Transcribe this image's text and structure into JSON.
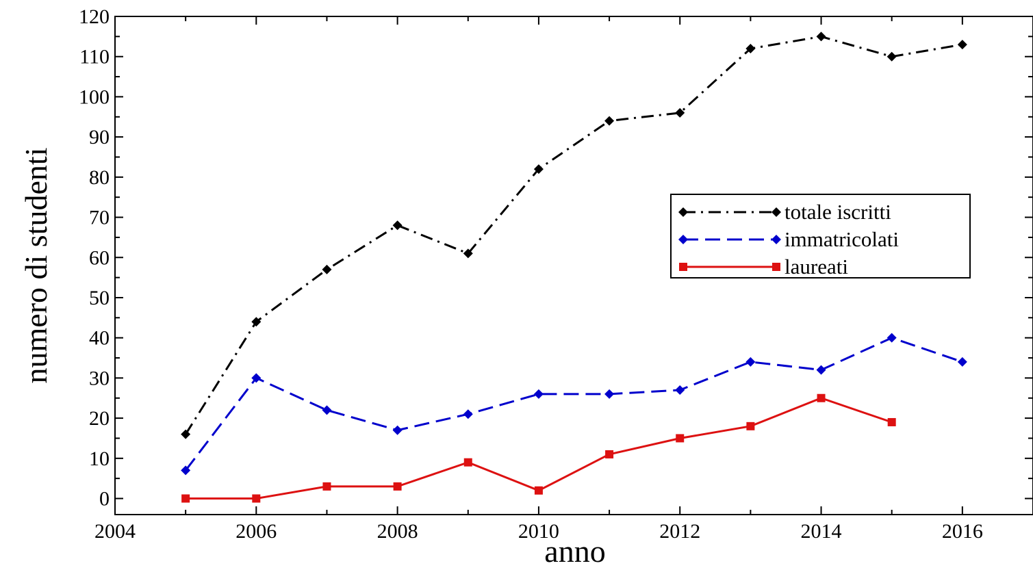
{
  "chart_data": {
    "type": "line",
    "title": "",
    "xlabel": "anno",
    "ylabel": "numero di studenti",
    "xlim": [
      2004,
      2017
    ],
    "ylim": [
      -4,
      120
    ],
    "x_ticks": [
      2004,
      2006,
      2008,
      2010,
      2012,
      2014,
      2016
    ],
    "y_ticks": [
      0,
      10,
      20,
      30,
      40,
      50,
      60,
      70,
      80,
      90,
      100,
      110,
      120
    ],
    "grid": false,
    "legend_position": "right",
    "series": [
      {
        "name": "totale iscritti",
        "color": "#000000",
        "line_style": "dash-dot",
        "marker": "diamond",
        "x": [
          2005,
          2006,
          2007,
          2008,
          2009,
          2010,
          2011,
          2012,
          2013,
          2014,
          2015,
          2016
        ],
        "y": [
          16,
          44,
          57,
          68,
          61,
          82,
          94,
          96,
          112,
          115,
          110,
          113
        ]
      },
      {
        "name": "immatricolati",
        "color": "#0000cc",
        "line_style": "dashed",
        "marker": "diamond",
        "x": [
          2005,
          2006,
          2007,
          2008,
          2009,
          2010,
          2011,
          2012,
          2013,
          2014,
          2015,
          2016
        ],
        "y": [
          7,
          30,
          22,
          17,
          21,
          26,
          26,
          27,
          34,
          32,
          40,
          34
        ]
      },
      {
        "name": "laureati",
        "color": "#dd1111",
        "line_style": "solid",
        "marker": "square",
        "x": [
          2005,
          2006,
          2007,
          2008,
          2009,
          2010,
          2011,
          2012,
          2013,
          2014,
          2015
        ],
        "y": [
          0,
          0,
          3,
          3,
          9,
          2,
          11,
          15,
          18,
          25,
          19
        ]
      }
    ]
  }
}
